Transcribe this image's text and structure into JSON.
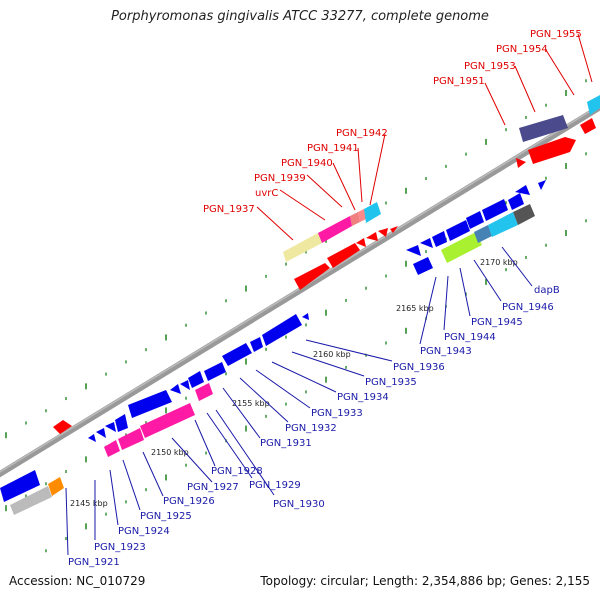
{
  "title": "Porphyromonas gingivalis ATCC 33277, complete genome",
  "footer": {
    "accession": "Accession: NC_010729",
    "summary": "Topology: circular; Length: 2,354,886 bp; Genes: 2,155"
  },
  "colors": {
    "backbone": "#888888",
    "tick": "#2a8a2a",
    "forward_label": "#e00000",
    "reverse_label": "#1a1aa8",
    "gene_red": "#ff0000",
    "gene_blue": "#0000ee",
    "gene_pink": "#ff1aa5",
    "gene_cyan": "#22c4ee",
    "gene_khaki": "#eee8a0",
    "gene_salmon": "#f08080",
    "gene_gray": "#bbbbbb",
    "gene_darkgray": "#555555",
    "gene_navy": "#4a4a8c",
    "gene_lime": "#a8f030",
    "gene_steel": "#4682b4",
    "gene_orange": "#ff8c00"
  },
  "scale_labels": [
    "2145 kbp",
    "2150 kbp",
    "2155 kbp",
    "2160 kbp",
    "2165 kbp",
    "2170 kbp"
  ],
  "forward_genes": [
    "PGN_1937",
    "uvrC",
    "PGN_1939",
    "PGN_1940",
    "PGN_1941",
    "PGN_1942",
    "PGN_1951",
    "PGN_1953",
    "PGN_1954",
    "PGN_1955"
  ],
  "reverse_genes": [
    "PGN_1921",
    "PGN_1923",
    "PGN_1924",
    "PGN_1925",
    "PGN_1926",
    "PGN_1927",
    "PGN_1928",
    "PGN_1929",
    "PGN_1930",
    "PGN_1931",
    "PGN_1932",
    "PGN_1933",
    "PGN_1934",
    "PGN_1935",
    "PGN_1936",
    "PGN_1943",
    "PGN_1944",
    "PGN_1945",
    "PGN_1946",
    "dapB"
  ]
}
